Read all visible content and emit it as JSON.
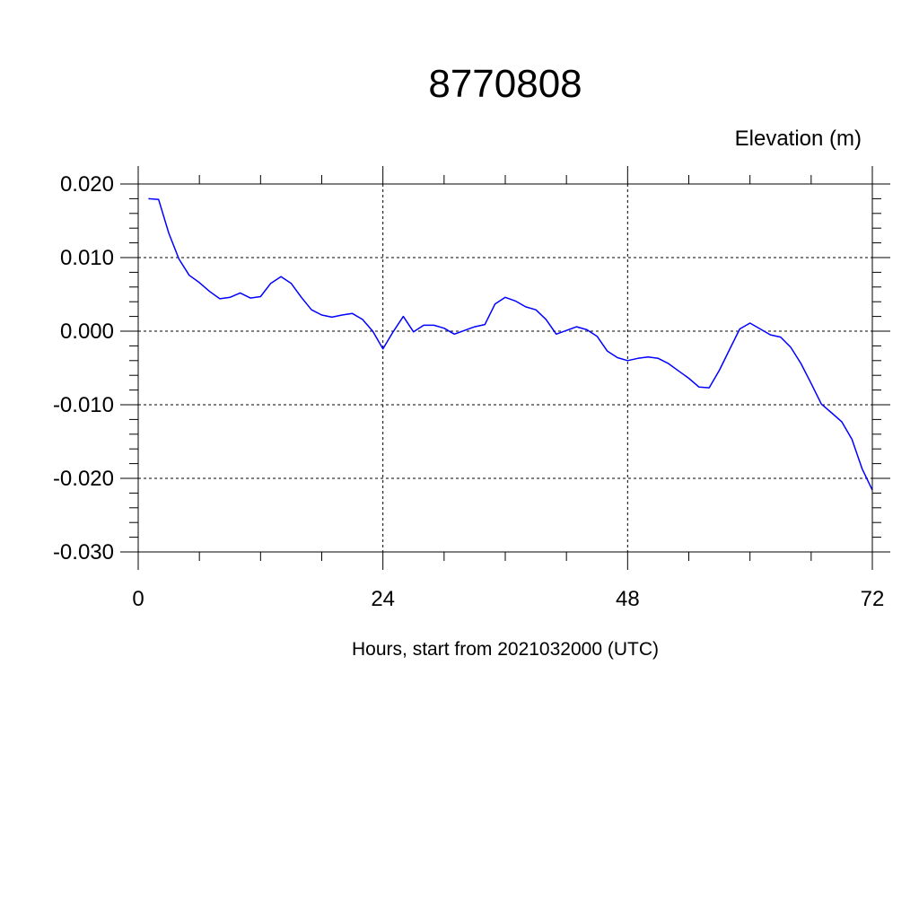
{
  "chart_data": {
    "type": "line",
    "title": "8770808",
    "units_label": "Elevation (m)",
    "xlabel": "Hours, start from 2021032000 (UTC)",
    "ylabel": "",
    "xlim": [
      0,
      72
    ],
    "ylim": [
      -0.03,
      0.02
    ],
    "x_ticks": [
      0,
      24,
      48,
      72
    ],
    "x_tick_labels": [
      "0",
      "24",
      "48",
      "72"
    ],
    "y_ticks": [
      0.02,
      0.01,
      0.0,
      -0.01,
      -0.02,
      -0.03
    ],
    "y_tick_labels": [
      "0.020",
      "0.010",
      "0.000",
      "-0.010",
      "-0.020",
      "-0.030"
    ],
    "grid": true,
    "series": [
      {
        "color": "#0000ff",
        "x": [
          1,
          2,
          3,
          4,
          5,
          6,
          7,
          8,
          9,
          10,
          11,
          12,
          13,
          14,
          15,
          16,
          17,
          18,
          19,
          20,
          21,
          22,
          23,
          24,
          25,
          26,
          27,
          28,
          29,
          30,
          31,
          32,
          33,
          34,
          35,
          36,
          37,
          38,
          39,
          40,
          41,
          42,
          43,
          44,
          45,
          46,
          47,
          48,
          49,
          50,
          51,
          52,
          53,
          54,
          55,
          56,
          57,
          58,
          59,
          60,
          61,
          62,
          63,
          64,
          65,
          66,
          67,
          68,
          69,
          70,
          71,
          72
        ],
        "y": [
          0.018,
          0.0179,
          0.0133,
          0.0098,
          0.0076,
          0.0066,
          0.0054,
          0.0044,
          0.0046,
          0.0052,
          0.0045,
          0.0047,
          0.0065,
          0.0074,
          0.0065,
          0.0046,
          0.0029,
          0.0022,
          0.0019,
          0.0022,
          0.0024,
          0.0016,
          0.0,
          -0.0024,
          -0.0001,
          0.002,
          -0.0001,
          0.0008,
          0.0008,
          0.0004,
          -0.0004,
          0.0001,
          0.0006,
          0.0009,
          0.0037,
          0.0046,
          0.0041,
          0.0033,
          0.0029,
          0.0016,
          -0.0004,
          0.0001,
          0.0006,
          0.0002,
          -0.0007,
          -0.0027,
          -0.0036,
          -0.004,
          -0.0037,
          -0.0035,
          -0.0037,
          -0.0044,
          -0.0054,
          -0.0064,
          -0.0076,
          -0.0077,
          -0.0053,
          -0.0025,
          0.0003,
          0.0011,
          0.0003,
          -0.0005,
          -0.0008,
          -0.0022,
          -0.0044,
          -0.0071,
          -0.0099,
          -0.0111,
          -0.0123,
          -0.0147,
          -0.0187,
          -0.0216
        ]
      }
    ]
  }
}
